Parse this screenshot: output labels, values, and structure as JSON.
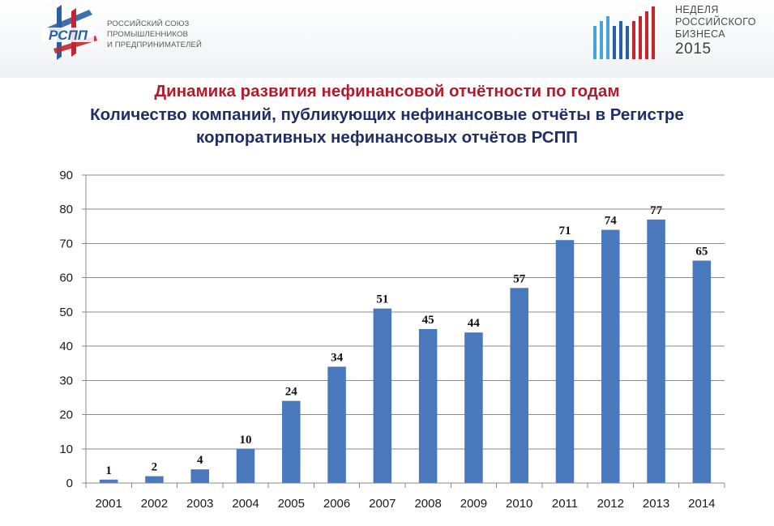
{
  "header": {
    "logo_text": "РСПП",
    "org_lines": [
      "РОССИЙСКИЙ СОЮЗ",
      "ПРОМЫШЛЕННИКОВ",
      "И ПРЕДПРИНИМАТЕЛЕЙ"
    ],
    "event_lines": [
      "НЕДЕЛЯ",
      "РОССИЙСКОГО",
      "БИЗНЕСА"
    ],
    "event_year": "2015"
  },
  "colors": {
    "title_red": "#b51a2a",
    "title_blue": "#1f2e66",
    "bar": "#4a78bd",
    "logo_blue": "#2a5fa6",
    "logo_red": "#c1272d"
  },
  "chart_data": {
    "type": "bar",
    "title": "Динамика развития нефинансовой отчётности по годам",
    "subtitle": "Количество компаний, публикующих нефинансовые отчёты в Регистре корпоративных нефинансовых отчётов РСПП",
    "subtitle_lines": [
      "Количество компаний, публикующих нефинансовые отчёты в Регистре",
      "корпоративных нефинансовых отчётов РСПП"
    ],
    "categories": [
      "2001",
      "2002",
      "2003",
      "2004",
      "2005",
      "2006",
      "2007",
      "2008",
      "2009",
      "2010",
      "2011",
      "2012",
      "2013",
      "2014"
    ],
    "values": [
      1,
      2,
      4,
      10,
      24,
      34,
      51,
      45,
      44,
      57,
      71,
      74,
      77,
      65
    ],
    "ylim": [
      0,
      90
    ],
    "yticks": [
      0,
      10,
      20,
      30,
      40,
      50,
      60,
      70,
      80,
      90
    ],
    "xlabel": "",
    "ylabel": "",
    "grid": true,
    "data_labels": true
  }
}
